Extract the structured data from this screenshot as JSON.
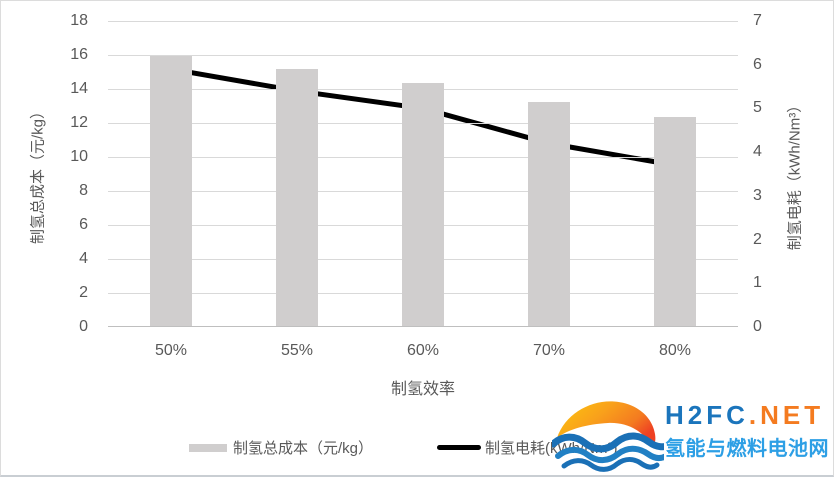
{
  "chart_data": {
    "type": "bar",
    "combo": "bar+line",
    "categories": [
      "50%",
      "55%",
      "60%",
      "70%",
      "80%"
    ],
    "series": [
      {
        "name": "制氢总成本（元/kg）",
        "type": "bar",
        "axis": "left",
        "values": [
          15.9,
          15.1,
          14.3,
          13.2,
          12.3
        ],
        "color": "#d0cece"
      },
      {
        "name": "制氢电耗(kWh/Nm³)",
        "type": "line",
        "axis": "right",
        "values": [
          5.9,
          5.4,
          5.0,
          4.2,
          3.7
        ],
        "color": "#000000"
      }
    ],
    "title": "",
    "xlabel": "制氢效率",
    "left_axis": {
      "title": "制氢总成本（元/kg）",
      "min": 0,
      "max": 18,
      "step": 2,
      "ticks": [
        18,
        16,
        14,
        12,
        10,
        8,
        6,
        4,
        2,
        0
      ]
    },
    "right_axis": {
      "title": "制氢电耗（kWh/Nm³）",
      "min": 0,
      "max": 7,
      "step": 1,
      "ticks": [
        7,
        6,
        5,
        4,
        3,
        2,
        1,
        0
      ]
    },
    "grid": true,
    "gridline_color": "#d9d9d9",
    "legend_position": "bottom"
  },
  "legend": {
    "items": [
      {
        "label": "制氢总成本（元/kg）",
        "swatch": "bar",
        "color": "#d0cece"
      },
      {
        "label": "制氢电耗(kWh/Nm³)",
        "swatch": "line",
        "color": "#000000"
      }
    ]
  },
  "logo": {
    "brand_blue": "H2FC",
    "brand_orange": ".NET",
    "subtitle": "氢能与燃料电池网",
    "colors": {
      "blue": "#1b75bc",
      "orange": "#f47b20",
      "light_blue": "#2d9fe5"
    }
  }
}
